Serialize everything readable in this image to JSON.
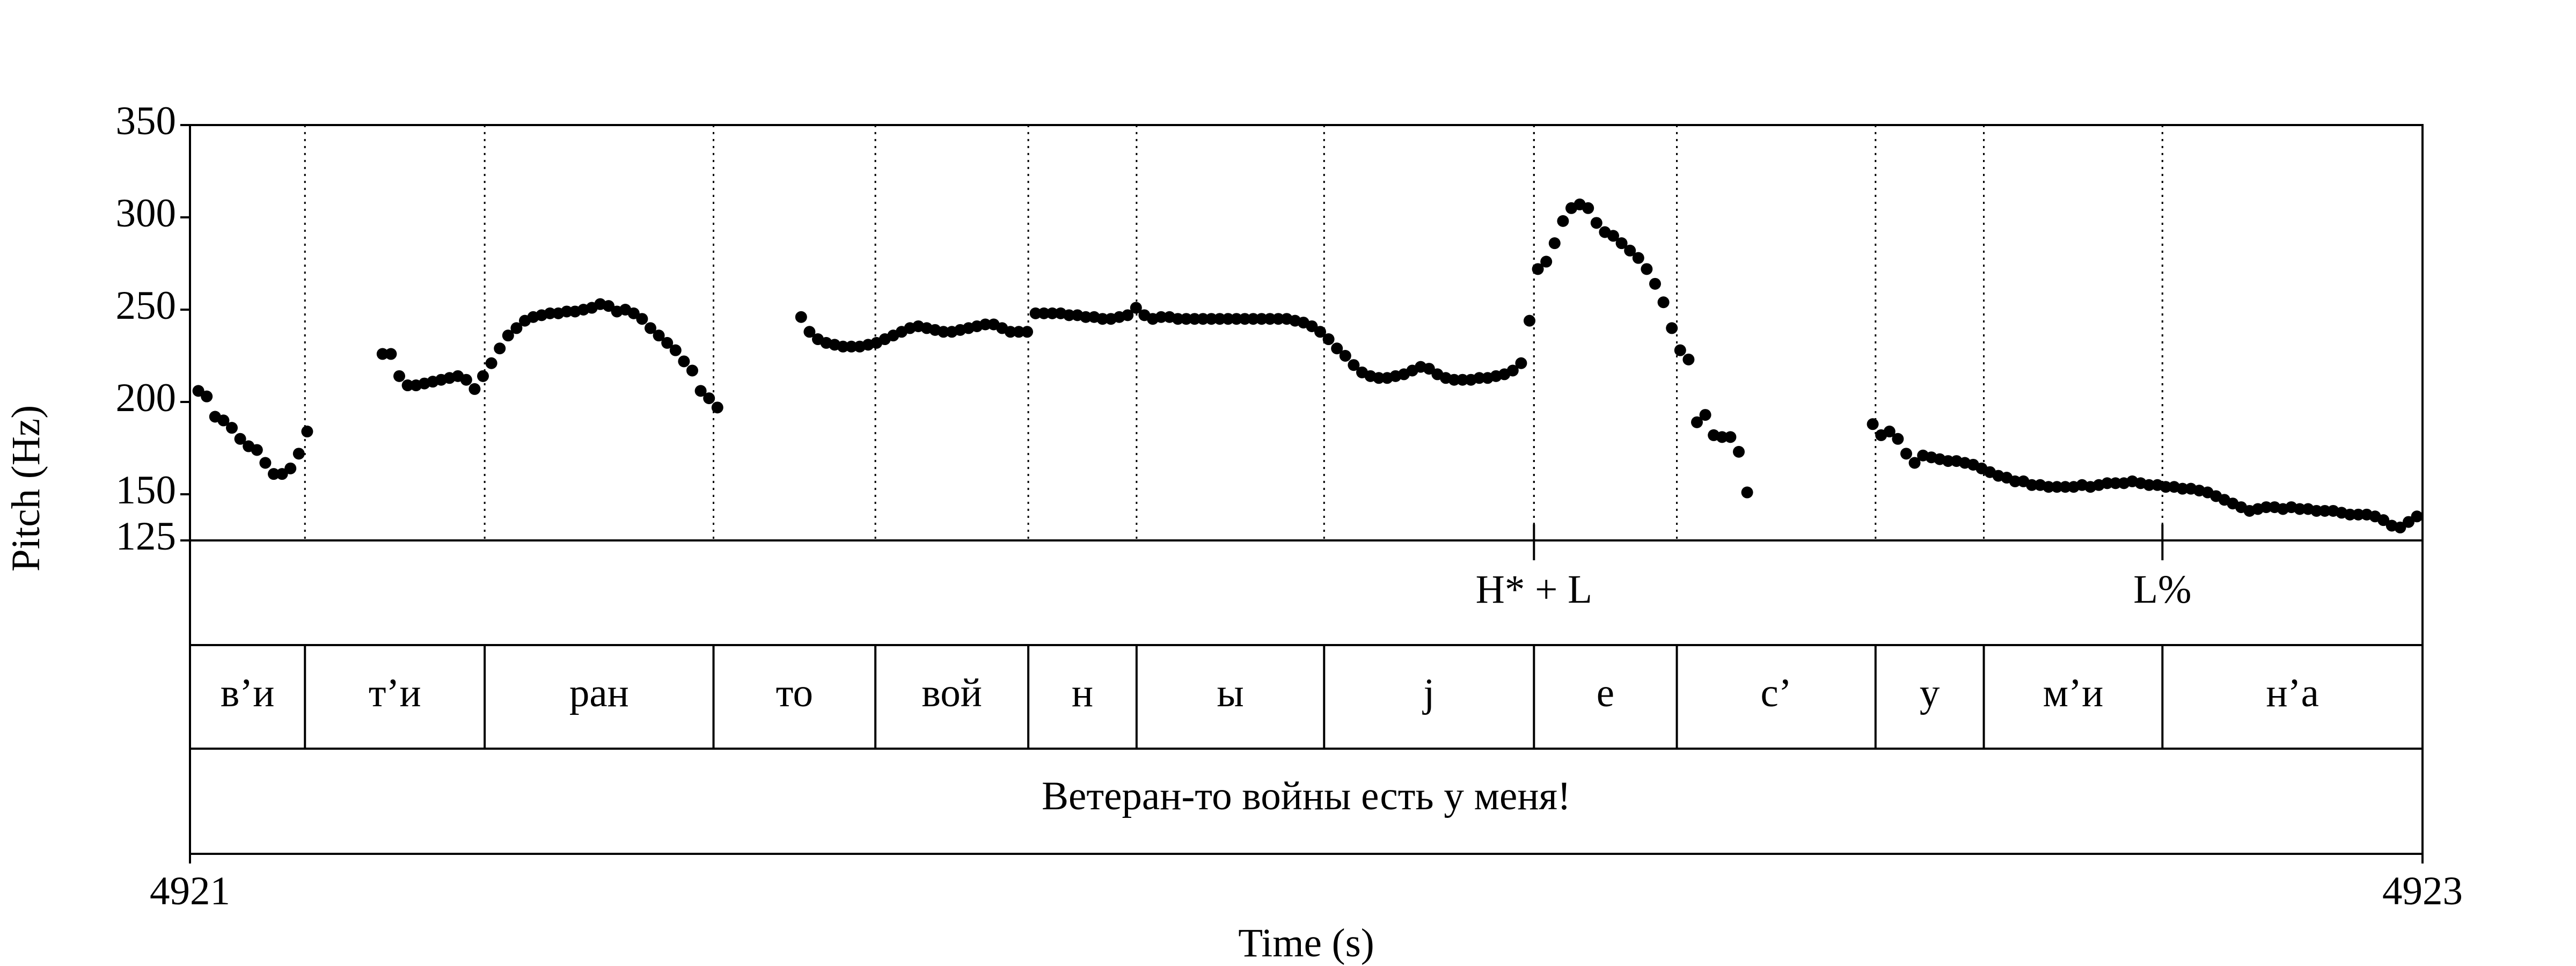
{
  "chart_data": {
    "type": "scatter",
    "ylabel": "Pitch (Hz)",
    "xlabel": "Time (s)",
    "xlim": [
      4921,
      4923
    ],
    "xticks": [
      4921,
      4923
    ],
    "ylim": [
      125,
      350
    ],
    "yticks": [
      125,
      150,
      200,
      250,
      300,
      350
    ],
    "color": "#000000",
    "x": [
      4921.0075,
      4921.015,
      4921.0225,
      4921.03,
      4921.0375,
      4921.045,
      4921.0525,
      4921.06,
      4921.0675,
      4921.075,
      4921.0825,
      4921.09,
      4921.0975,
      4921.105,
      4921.1725,
      4921.18,
      4921.1875,
      4921.195,
      4921.2025,
      4921.21,
      4921.2175,
      4921.225,
      4921.2325,
      4921.24,
      4921.2475,
      4921.255,
      4921.2625,
      4921.27,
      4921.2775,
      4921.285,
      4921.2925,
      4921.3,
      4921.3075,
      4921.315,
      4921.3225,
      4921.33,
      4921.3375,
      4921.345,
      4921.3525,
      4921.36,
      4921.3675,
      4921.375,
      4921.3825,
      4921.39,
      4921.3975,
      4921.405,
      4921.4125,
      4921.42,
      4921.4275,
      4921.435,
      4921.4425,
      4921.45,
      4921.4575,
      4921.465,
      4921.4725,
      4921.5475,
      4921.555,
      4921.5625,
      4921.57,
      4921.5775,
      4921.585,
      4921.5925,
      4921.6,
      4921.6075,
      4921.615,
      4921.6225,
      4921.63,
      4921.6375,
      4921.645,
      4921.6525,
      4921.66,
      4921.6675,
      4921.675,
      4921.6825,
      4921.69,
      4921.6975,
      4921.705,
      4921.7125,
      4921.72,
      4921.7275,
      4921.735,
      4921.7425,
      4921.75,
      4921.7575,
      4921.765,
      4921.7725,
      4921.78,
      4921.7875,
      4921.795,
      4921.8025,
      4921.81,
      4921.8175,
      4921.825,
      4921.8325,
      4921.84,
      4921.8475,
      4921.855,
      4921.8625,
      4921.87,
      4921.8775,
      4921.885,
      4921.8925,
      4921.9,
      4921.9075,
      4921.915,
      4921.9225,
      4921.93,
      4921.9375,
      4921.945,
      4921.9525,
      4921.96,
      4921.9675,
      4921.975,
      4921.9825,
      4921.99,
      4921.9975,
      4922.005,
      4922.0125,
      4922.02,
      4922.0275,
      4922.035,
      4922.0425,
      4922.05,
      4922.0575,
      4922.065,
      4922.0725,
      4922.08,
      4922.0875,
      4922.095,
      4922.1025,
      4922.11,
      4922.1175,
      4922.125,
      4922.1325,
      4922.14,
      4922.1475,
      4922.155,
      4922.1625,
      4922.17,
      4922.1775,
      4922.185,
      4922.1925,
      4922.2,
      4922.2075,
      4922.215,
      4922.2225,
      4922.23,
      4922.2375,
      4922.245,
      4922.2525,
      4922.26,
      4922.2675,
      4922.275,
      4922.2825,
      4922.29,
      4922.2975,
      4922.305,
      4922.3125,
      4922.32,
      4922.3275,
      4922.335,
      4922.3425,
      4922.35,
      4922.3575,
      4922.365,
      4922.3725,
      4922.38,
      4922.3875,
      4922.395,
      4922.5075,
      4922.515,
      4922.5225,
      4922.53,
      4922.5375,
      4922.545,
      4922.5525,
      4922.56,
      4922.5675,
      4922.575,
      4922.5825,
      4922.59,
      4922.5975,
      4922.605,
      4922.6125,
      4922.62,
      4922.6275,
      4922.635,
      4922.6425,
      4922.65,
      4922.6575,
      4922.665,
      4922.6725,
      4922.68,
      4922.6875,
      4922.695,
      4922.7025,
      4922.71,
      4922.7175,
      4922.725,
      4922.7325,
      4922.74,
      4922.7475,
      4922.755,
      4922.7625,
      4922.77,
      4922.7775,
      4922.785,
      4922.7925,
      4922.8,
      4922.8075,
      4922.815,
      4922.8225,
      4922.83,
      4922.8375,
      4922.845,
      4922.8525,
      4922.86,
      4922.8675,
      4922.875,
      4922.8825,
      4922.89,
      4922.8975,
      4922.905,
      4922.9125,
      4922.92,
      4922.9275,
      4922.935,
      4922.9425,
      4922.95,
      4922.9575,
      4922.965,
      4922.9725,
      4922.98,
      4922.9875,
      4922.995
    ],
    "values": [
      206,
      203,
      192,
      190,
      186,
      180,
      176,
      174,
      167,
      161,
      161,
      164,
      172,
      184,
      226,
      226,
      214,
      209,
      209,
      210,
      211,
      212,
      213,
      214,
      212,
      207,
      214,
      221,
      229,
      236,
      240,
      244,
      246,
      247,
      248,
      248,
      249,
      249,
      250,
      251,
      253,
      252,
      249,
      250,
      248,
      245,
      240,
      236,
      232,
      228,
      222,
      217,
      206,
      202,
      197,
      246,
      238,
      234,
      232,
      231,
      230,
      230,
      230,
      231,
      232,
      234,
      236,
      238,
      240,
      241,
      240,
      239,
      238,
      238,
      239,
      240,
      241,
      242,
      242,
      240,
      238,
      238,
      238,
      248,
      248,
      248,
      248,
      247,
      247,
      246,
      246,
      245,
      245,
      246,
      247,
      251,
      247,
      245,
      246,
      246,
      245,
      245,
      245,
      245,
      245,
      245,
      245,
      245,
      245,
      245,
      245,
      245,
      245,
      245,
      244,
      243,
      241,
      238,
      234,
      229,
      225,
      220,
      216,
      214,
      213,
      213,
      214,
      215,
      217,
      219,
      218,
      215,
      213,
      212,
      212,
      212,
      213,
      213,
      214,
      215,
      217,
      221,
      244,
      272,
      276,
      286,
      298,
      305,
      307,
      305,
      297,
      292,
      290,
      286,
      282,
      278,
      272,
      264,
      254,
      240,
      228,
      223,
      189,
      193,
      182,
      181,
      181,
      173,
      151,
      188,
      182,
      184,
      180,
      172,
      167,
      171,
      170,
      169,
      168,
      168,
      167,
      166,
      164,
      162,
      160,
      159,
      157,
      157,
      155,
      155,
      154,
      154,
      154,
      154,
      155,
      154,
      155,
      156,
      156,
      156,
      157,
      156,
      155,
      155,
      154,
      154,
      153,
      153,
      152,
      151,
      149,
      147,
      145,
      143,
      141,
      142,
      143,
      143,
      142,
      143,
      142,
      142,
      141,
      141,
      141,
      140,
      139,
      139,
      139,
      138,
      136,
      133,
      132,
      135,
      138
    ],
    "tones": {
      "times": [
        4922.204,
        4922.767
      ],
      "labels": [
        "H* + L",
        "L%"
      ]
    },
    "syllables": {
      "boundaries": [
        4921,
        4921.103,
        4921.264,
        4921.469,
        4921.614,
        4921.751,
        4921.848,
        4922.016,
        4922.204,
        4922.332,
        4922.51,
        4922.607,
        4922.767,
        4923
      ],
      "labels": [
        "в’и",
        "т’и",
        "ран",
        "то",
        "вой",
        "н",
        "ы",
        "j",
        "е",
        "с’",
        "у",
        "м’и",
        "н’а"
      ]
    },
    "sentence": "Ветеран-то войны есть у меня!"
  }
}
